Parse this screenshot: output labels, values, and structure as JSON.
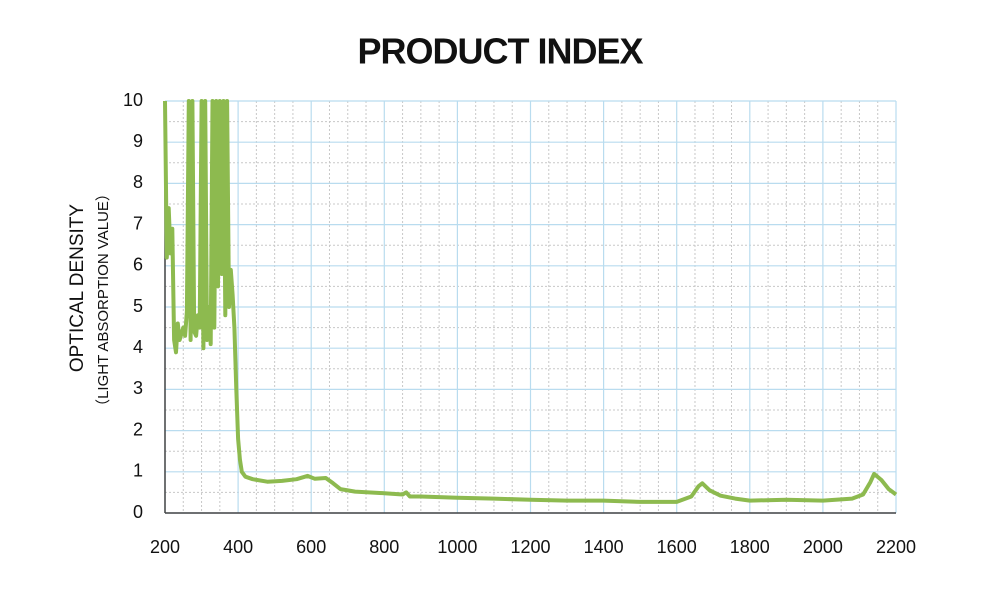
{
  "chart_data": {
    "type": "line",
    "title": "PRODUCT INDEX",
    "y_label": "OPTICAL DENSITY",
    "y_sublabel": "（LIGHT ABSORPTION VALUE）",
    "xlim": [
      200,
      2200
    ],
    "xticks": [
      200,
      400,
      600,
      800,
      1000,
      1200,
      1400,
      1600,
      1800,
      2000,
      2200
    ],
    "ylim": [
      0,
      10
    ],
    "yticks": [
      0,
      1,
      2,
      3,
      4,
      5,
      6,
      7,
      8,
      9,
      10
    ],
    "grid": true,
    "grid_color": "#b9dcef",
    "series": [
      {
        "color": "#8dba4f",
        "x": [
          200,
          205,
          210,
          215,
          220,
          225,
          230,
          235,
          240,
          250,
          255,
          260,
          265,
          270,
          275,
          280,
          285,
          290,
          295,
          300,
          305,
          310,
          315,
          320,
          325,
          330,
          335,
          340,
          345,
          350,
          355,
          360,
          365,
          370,
          375,
          380,
          385,
          390,
          395,
          400,
          405,
          410,
          420,
          440,
          480,
          520,
          560,
          590,
          610,
          640,
          660,
          680,
          720,
          800,
          850,
          860,
          870,
          900,
          1000,
          1100,
          1200,
          1300,
          1400,
          1500,
          1600,
          1640,
          1660,
          1670,
          1690,
          1720,
          1760,
          1800,
          1900,
          2000,
          2080,
          2110,
          2130,
          2140,
          2160,
          2180,
          2200
        ],
        "values": [
          10,
          6.2,
          7.4,
          6.3,
          6.9,
          4.2,
          3.9,
          4.6,
          4.2,
          4.5,
          4.3,
          4.9,
          10,
          4.2,
          10,
          4.4,
          4.3,
          4.8,
          4.5,
          10,
          4.0,
          10,
          4.2,
          5.0,
          4.1,
          10,
          4.5,
          10,
          5.5,
          10,
          5.8,
          10,
          4.8,
          10,
          5.0,
          5.9,
          5.3,
          4.5,
          3.0,
          1.8,
          1.3,
          1.0,
          0.88,
          0.82,
          0.76,
          0.78,
          0.82,
          0.9,
          0.83,
          0.85,
          0.72,
          0.58,
          0.52,
          0.48,
          0.45,
          0.5,
          0.4,
          0.4,
          0.37,
          0.35,
          0.32,
          0.3,
          0.3,
          0.27,
          0.27,
          0.4,
          0.65,
          0.72,
          0.55,
          0.42,
          0.35,
          0.3,
          0.32,
          0.3,
          0.35,
          0.45,
          0.75,
          0.95,
          0.8,
          0.58,
          0.45
        ]
      }
    ]
  }
}
